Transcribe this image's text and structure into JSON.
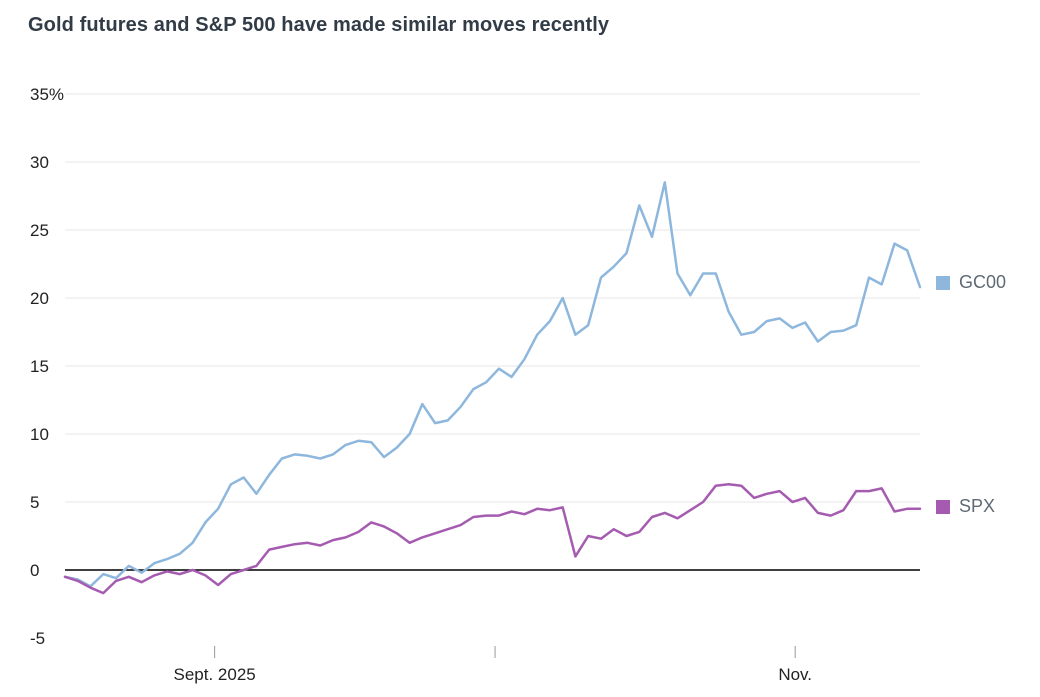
{
  "chart_data": {
    "type": "line",
    "title": "Gold futures and S&P 500 have made similar moves recently",
    "xlabel": "",
    "ylabel": "",
    "ylim": [
      -5,
      35
    ],
    "yticks": [
      35,
      30,
      25,
      20,
      15,
      10,
      5,
      0,
      -5
    ],
    "ytick_labels": [
      "35%",
      "30",
      "25",
      "20",
      "15",
      "10",
      "5",
      "0",
      "-5"
    ],
    "grid": true,
    "grid_color": "#e7e7e7",
    "zero_line_color": "#000000",
    "tick_color": "#999999",
    "legend_position": "right",
    "xticks": [
      {
        "label": "Sept. 2025",
        "pos": 0.175
      },
      {
        "label": "",
        "pos": 0.503
      },
      {
        "label": "Nov.",
        "pos": 0.854
      }
    ],
    "series": [
      {
        "name": "GC00",
        "color": "#8db7dc",
        "values": [
          -0.5,
          -0.7,
          -1.2,
          -0.3,
          -0.6,
          0.3,
          -0.2,
          0.5,
          0.8,
          1.2,
          2,
          3.5,
          4.5,
          6.3,
          6.8,
          5.6,
          7,
          8.2,
          8.5,
          8.4,
          8.2,
          8.5,
          9.2,
          9.5,
          9.4,
          8.3,
          9,
          10,
          12.2,
          10.8,
          11,
          12,
          13.3,
          13.8,
          14.8,
          14.2,
          15.5,
          17.3,
          18.3,
          20,
          17.3,
          18,
          21.5,
          22.3,
          23.3,
          26.8,
          24.5,
          28.5,
          21.8,
          20.2,
          21.8,
          21.8,
          19,
          17.3,
          17.5,
          18.3,
          18.5,
          17.8,
          18.2,
          16.8,
          17.5,
          17.6,
          18,
          21.5,
          21,
          24,
          23.5,
          20.8
        ]
      },
      {
        "name": "SPX",
        "color": "#a55cb0",
        "values": [
          -0.5,
          -0.8,
          -1.3,
          -1.7,
          -0.8,
          -0.5,
          -0.9,
          -0.4,
          -0.1,
          -0.3,
          0,
          -0.4,
          -1.1,
          -0.3,
          0,
          0.3,
          1.5,
          1.7,
          1.9,
          2,
          1.8,
          2.2,
          2.4,
          2.8,
          3.5,
          3.2,
          2.7,
          2,
          2.4,
          2.7,
          3,
          3.3,
          3.9,
          4,
          4,
          4.3,
          4.1,
          4.5,
          4.4,
          4.6,
          1,
          2.5,
          2.3,
          3,
          2.5,
          2.8,
          3.9,
          4.2,
          3.8,
          4.4,
          5,
          6.2,
          6.3,
          6.2,
          5.3,
          5.6,
          5.8,
          5,
          5.3,
          4.2,
          4,
          4.4,
          5.8,
          5.8,
          6,
          4.3,
          4.5,
          4.5
        ]
      }
    ]
  }
}
